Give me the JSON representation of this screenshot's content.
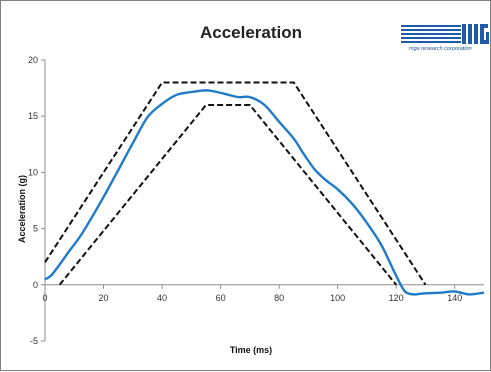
{
  "chart_data": {
    "type": "line",
    "title": "Acceleration",
    "xlabel": "Time (ms)",
    "ylabel": "Acceleration (g)",
    "xlim": [
      0,
      150
    ],
    "ylim": [
      -5,
      20
    ],
    "xticks": [
      0,
      20,
      40,
      60,
      80,
      100,
      120,
      140
    ],
    "yticks": [
      -5,
      0,
      5,
      10,
      15,
      20
    ],
    "grid": false,
    "legend": "none",
    "series": [
      {
        "role": "measured",
        "color": "#1f7ac8",
        "style": "solid",
        "x": [
          0,
          2,
          5,
          8,
          12,
          16,
          20,
          25,
          30,
          35,
          40,
          45,
          50,
          55,
          58,
          62,
          66,
          70,
          75,
          80,
          85,
          88,
          92,
          96,
          100,
          105,
          110,
          115,
          120,
          123,
          126,
          128,
          131,
          135,
          140,
          145,
          150
        ],
        "y": [
          0.5,
          0.8,
          1.8,
          2.9,
          4.3,
          6.0,
          7.8,
          10.2,
          12.6,
          14.9,
          16.1,
          16.9,
          17.15,
          17.3,
          17.2,
          16.95,
          16.7,
          16.7,
          16.0,
          14.5,
          13.0,
          11.8,
          10.3,
          9.3,
          8.5,
          7.2,
          5.5,
          3.5,
          0.8,
          -0.6,
          -0.85,
          -0.8,
          -0.75,
          -0.7,
          -0.6,
          -0.85,
          -0.7
        ]
      },
      {
        "role": "upper-corridor",
        "color": "#111111",
        "style": "dashed",
        "x": [
          0,
          40,
          85,
          130
        ],
        "y": [
          2,
          18,
          18,
          0
        ]
      },
      {
        "role": "lower-corridor",
        "color": "#111111",
        "style": "dashed",
        "x": [
          5,
          55,
          70,
          120
        ],
        "y": [
          0,
          16,
          16,
          0
        ]
      }
    ]
  },
  "logo": {
    "mark": "mga",
    "tagline": "mga research corporation",
    "color": "#1f5ba8"
  }
}
